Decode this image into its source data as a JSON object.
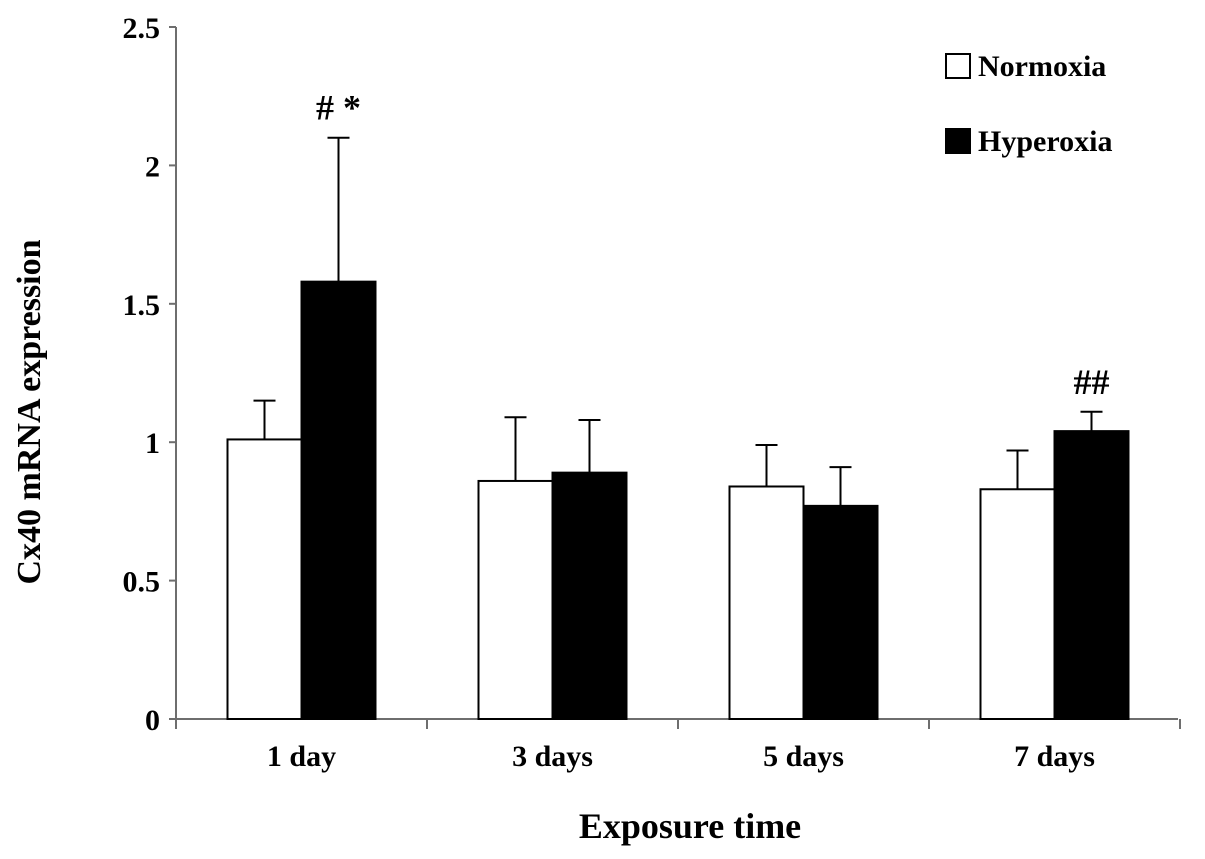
{
  "chart_data": {
    "type": "bar",
    "title": "",
    "xlabel": "Exposure time",
    "ylabel": "Cx40 mRNA expression",
    "ylim": [
      0,
      2.5
    ],
    "yticks": [
      0,
      0.5,
      1,
      1.5,
      2,
      2.5
    ],
    "ytick_labels": [
      "0",
      "0.5",
      "1",
      "1.5",
      "2",
      "2.5"
    ],
    "grid": false,
    "legend_position": "top-right",
    "categories": [
      "1 day",
      "3 days",
      "5 days",
      "7 days"
    ],
    "series": [
      {
        "name": "Normoxia",
        "fill": "#ffffff",
        "values": [
          1.01,
          0.86,
          0.84,
          0.83
        ],
        "errors": [
          0.14,
          0.23,
          0.15,
          0.14
        ]
      },
      {
        "name": "Hyperoxia",
        "fill": "#000000",
        "values": [
          1.58,
          0.89,
          0.77,
          1.04
        ],
        "errors": [
          0.52,
          0.19,
          0.14,
          0.07
        ]
      }
    ],
    "annotations": [
      {
        "text": "# *",
        "category_index": 0,
        "series_index": 1
      },
      {
        "text": "##",
        "category_index": 3,
        "series_index": 1
      }
    ]
  }
}
